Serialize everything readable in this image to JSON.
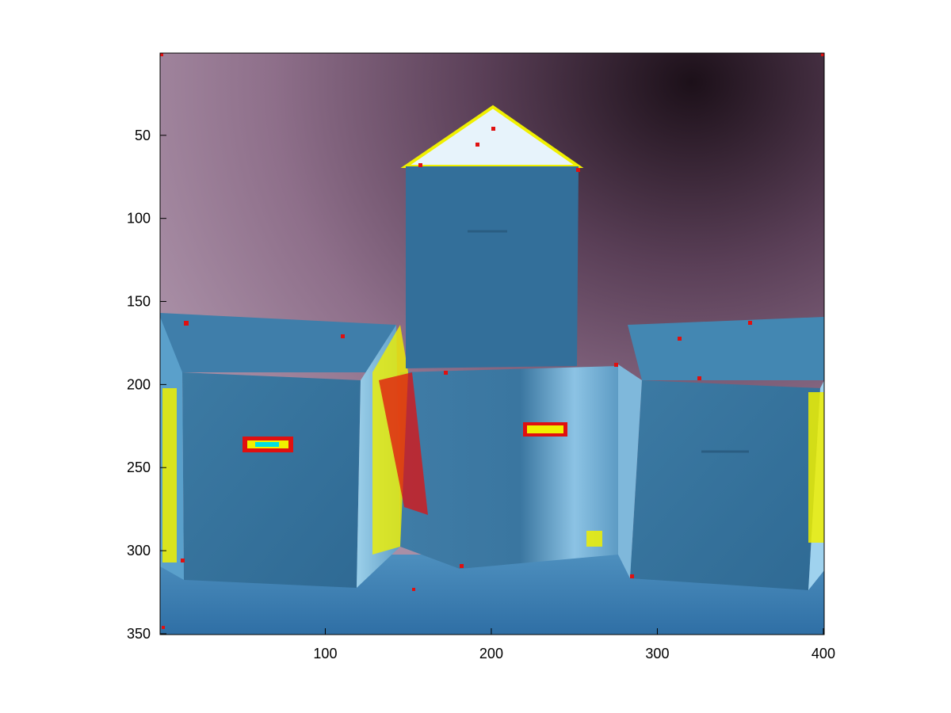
{
  "axes": {
    "x_ticks": [
      {
        "value": 100,
        "label": "100"
      },
      {
        "value": 200,
        "label": "200"
      },
      {
        "value": 300,
        "label": "300"
      },
      {
        "value": 400,
        "label": "400"
      }
    ],
    "y_ticks": [
      {
        "value": 50,
        "label": "50"
      },
      {
        "value": 100,
        "label": "100"
      },
      {
        "value": 150,
        "label": "150"
      },
      {
        "value": 200,
        "label": "200"
      },
      {
        "value": 250,
        "label": "250"
      },
      {
        "value": 300,
        "label": "300"
      },
      {
        "value": 350,
        "label": "350"
      }
    ],
    "xlim": [
      0.5,
      400.5
    ],
    "ylim": [
      0.5,
      350.5
    ],
    "y_direction": "reversed"
  },
  "image": {
    "subject": "three stacked cardboard boxes with edge-detection overlay",
    "palette": {
      "background_top": "#2a1a26",
      "background_mid": "#8b6a86",
      "box_face": "#3f7fa8",
      "box_dark": "#2a5f86",
      "floor": "#3a7fb2",
      "edge_yellow": "#f0f000",
      "edge_red": "#e01010",
      "edge_magenta": "#ff00ff",
      "edge_cyan": "#00e0e0"
    }
  }
}
